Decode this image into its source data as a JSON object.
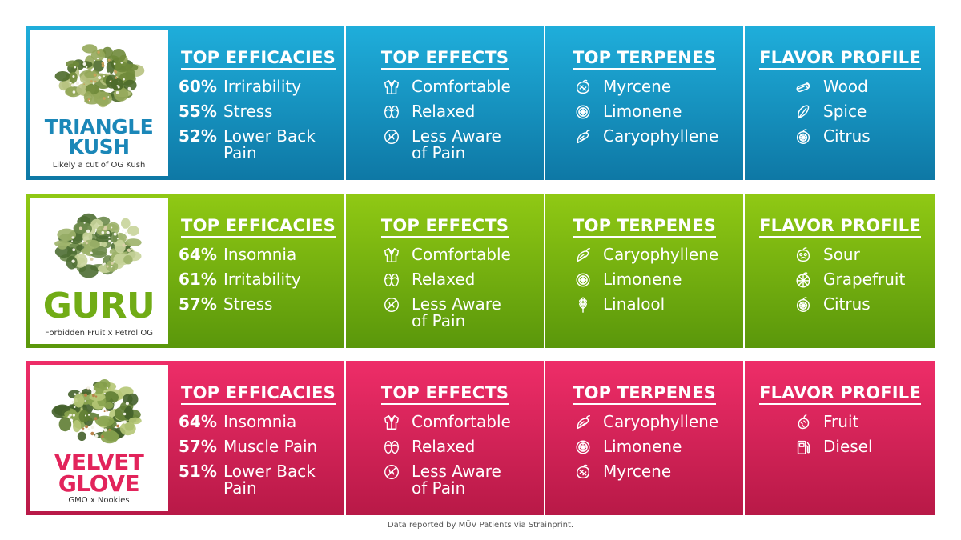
{
  "colors": {
    "blue": [
      "#1faedb",
      "#0e78a5"
    ],
    "green": [
      "#90c914",
      "#5a970b"
    ],
    "red": [
      "#ee2d68",
      "#b81947"
    ],
    "blue_text": "#1b87b8",
    "green_text": "#71ac16",
    "red_text": "#e2245b"
  },
  "headers": {
    "efficacies": "TOP EFFICACIES",
    "effects": "TOP EFFECTS",
    "terpenes": "TOP TERPENES",
    "flavor": "FLAVOR PROFILE"
  },
  "strains": [
    {
      "name": "TRIANGLE\nKUSH",
      "subtitle": "Likely a cut of OG Kush",
      "theme": "blue",
      "efficacies": [
        {
          "pct": "60%",
          "label": "Irrirability"
        },
        {
          "pct": "55%",
          "label": "Stress"
        },
        {
          "pct": "52%",
          "label": "Lower Back\nPain"
        }
      ],
      "effects": [
        {
          "icon": "robe-icon",
          "label": "Comfortable"
        },
        {
          "icon": "slippers-icon",
          "label": "Relaxed"
        },
        {
          "icon": "no-pain-icon",
          "label": "Less Aware\nof Pain"
        }
      ],
      "terpenes": [
        {
          "icon": "mango-icon",
          "label": "Myrcene"
        },
        {
          "icon": "lemon-icon",
          "label": "Limonene"
        },
        {
          "icon": "pepper-icon",
          "label": "Caryophyllene"
        }
      ],
      "flavors": [
        {
          "icon": "wood-icon",
          "label": "Wood"
        },
        {
          "icon": "spice-icon",
          "label": "Spice"
        },
        {
          "icon": "citrus-icon",
          "label": "Citrus"
        }
      ]
    },
    {
      "name": "GURU",
      "subtitle": "Forbidden Fruit x Petrol OG",
      "theme": "green",
      "efficacies": [
        {
          "pct": "64%",
          "label": "Insomnia"
        },
        {
          "pct": "61%",
          "label": "Irritability"
        },
        {
          "pct": "57%",
          "label": "Stress"
        }
      ],
      "effects": [
        {
          "icon": "robe-icon",
          "label": "Comfortable"
        },
        {
          "icon": "slippers-icon",
          "label": "Relaxed"
        },
        {
          "icon": "no-pain-icon",
          "label": "Less Aware\nof Pain"
        }
      ],
      "terpenes": [
        {
          "icon": "pepper-icon",
          "label": "Caryophyllene"
        },
        {
          "icon": "lemon-icon",
          "label": "Limonene"
        },
        {
          "icon": "lavender-icon",
          "label": "Linalool"
        }
      ],
      "flavors": [
        {
          "icon": "sour-icon",
          "label": "Sour"
        },
        {
          "icon": "grapefruit-icon",
          "label": "Grapefruit"
        },
        {
          "icon": "citrus-icon",
          "label": "Citrus"
        }
      ]
    },
    {
      "name": "VELVET\nGLOVE",
      "subtitle": "GMO x Nookies",
      "theme": "red",
      "efficacies": [
        {
          "pct": "64%",
          "label": "Insomnia"
        },
        {
          "pct": "57%",
          "label": "Muscle Pain"
        },
        {
          "pct": "51%",
          "label": "Lower Back\nPain"
        }
      ],
      "effects": [
        {
          "icon": "robe-icon",
          "label": "Comfortable"
        },
        {
          "icon": "slippers-icon",
          "label": "Relaxed"
        },
        {
          "icon": "no-pain-icon",
          "label": "Less Aware\nof Pain"
        }
      ],
      "terpenes": [
        {
          "icon": "pepper-icon",
          "label": "Caryophyllene"
        },
        {
          "icon": "lemon-icon",
          "label": "Limonene"
        },
        {
          "icon": "mango-icon",
          "label": "Myrcene"
        }
      ],
      "flavors": [
        {
          "icon": "fruit-icon",
          "label": "Fruit"
        },
        {
          "icon": "diesel-icon",
          "label": "Diesel"
        }
      ]
    }
  ],
  "footer": "Data reported by MÜV Patients via Strainprint."
}
